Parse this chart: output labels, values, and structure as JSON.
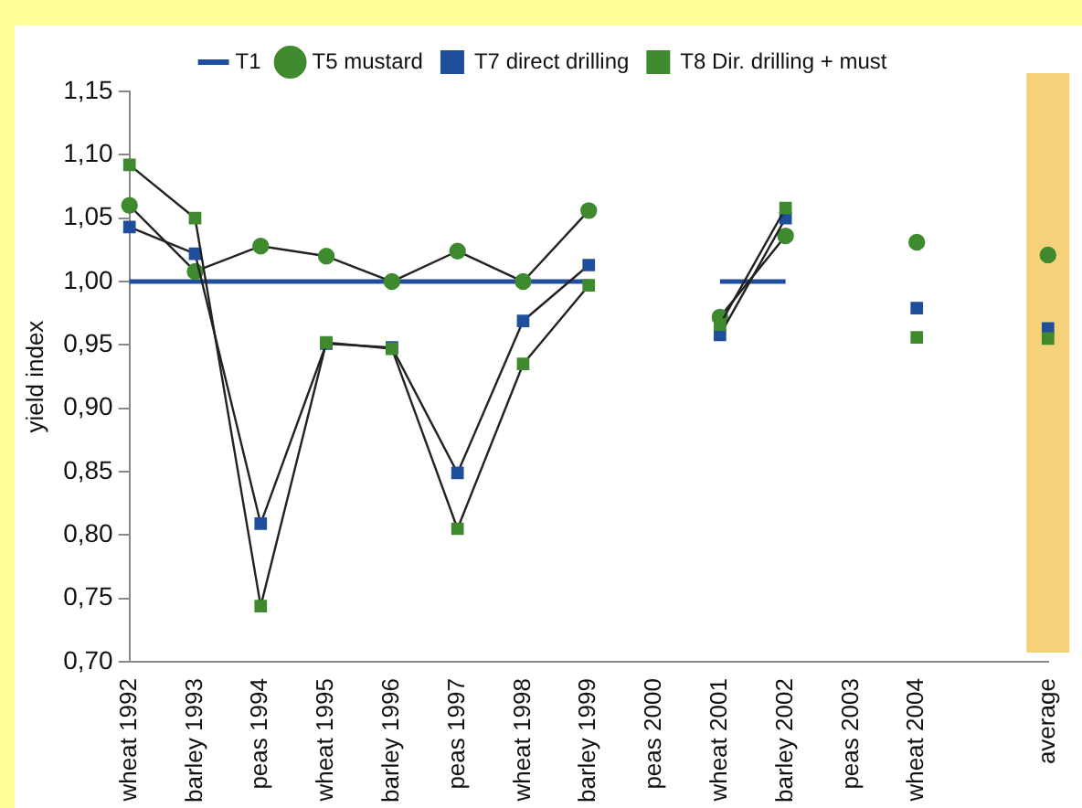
{
  "chart_data": {
    "type": "line",
    "ylabel": "yield index",
    "categories": [
      "wheat 1992",
      "barley 1993",
      "peas 1994",
      "wheat 1995",
      "barley 1996",
      "peas 1997",
      "wheat 1998",
      "barley 1999",
      "peas 2000",
      "wheat 2001",
      "barley 2002",
      "peas 2003",
      "wheat 2004",
      null,
      "average"
    ],
    "series": [
      {
        "name": "T1",
        "color": "#1f4e9c",
        "marker": "none",
        "values": [
          1.0,
          1.0,
          1.0,
          1.0,
          1.0,
          1.0,
          1.0,
          1.0,
          null,
          1.0,
          1.0,
          null,
          null,
          null,
          null
        ]
      },
      {
        "name": "T5 mustard",
        "color": "#3f8a2e",
        "marker": "circle",
        "values": [
          1.06,
          1.008,
          1.028,
          1.02,
          1.0,
          1.024,
          1.0,
          1.056,
          null,
          0.972,
          1.036,
          null,
          1.031,
          null,
          1.021
        ]
      },
      {
        "name": "T7 direct drilling",
        "color": "#1f4e9c",
        "marker": "square",
        "values": [
          1.043,
          1.022,
          0.809,
          0.951,
          0.948,
          0.849,
          0.969,
          1.013,
          null,
          0.958,
          1.05,
          null,
          0.979,
          null,
          0.963
        ]
      },
      {
        "name": "T8 Dir. drilling + must",
        "color": "#3f8a2e",
        "marker": "square",
        "values": [
          1.092,
          1.05,
          0.744,
          0.952,
          0.947,
          0.805,
          0.935,
          0.997,
          null,
          0.966,
          1.058,
          null,
          0.956,
          null,
          0.955
        ]
      }
    ],
    "ylim": [
      0.7,
      1.15
    ],
    "yticks": [
      {
        "value": 0.7,
        "label": "0,70"
      },
      {
        "value": 0.75,
        "label": "0,75"
      },
      {
        "value": 0.8,
        "label": "0,80"
      },
      {
        "value": 0.85,
        "label": "0,85"
      },
      {
        "value": 0.9,
        "label": "0,90"
      },
      {
        "value": 0.95,
        "label": "0,95"
      },
      {
        "value": 1.0,
        "label": "1,00"
      },
      {
        "value": 1.05,
        "label": "1,05"
      },
      {
        "value": 1.1,
        "label": "1,10"
      },
      {
        "value": 1.15,
        "label": "1,15"
      }
    ],
    "bands": [
      {
        "axis": "x",
        "from": "average",
        "to": "average",
        "color": "#f5d27a"
      }
    ],
    "grid": false,
    "legend": "top"
  }
}
